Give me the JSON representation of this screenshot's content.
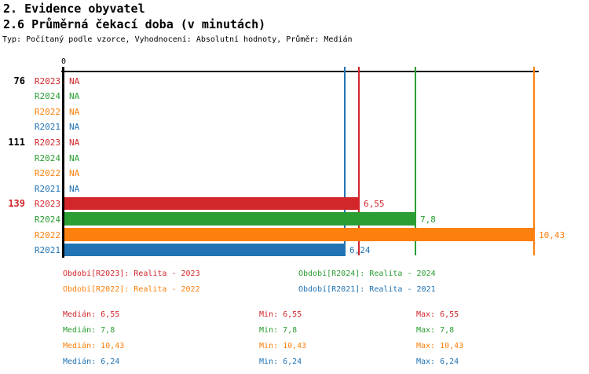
{
  "header": {
    "title1": "2. Evidence obyvatel",
    "title2": "2.6 Průměrná čekací doba (v minutách)",
    "meta": "Typ: Počítaný podle vzorce, Vyhodnocení: Absolutní hodnoty, Průměr: Medián"
  },
  "chart_data": {
    "type": "bar",
    "orientation": "horizontal",
    "title": "2.6 Průměrná čekací doba (v minutách)",
    "axis": {
      "origin_label": "0",
      "min": 0,
      "max_plotted_value": 10.43
    },
    "series": [
      {
        "name": "R2023",
        "color": "#d2262b",
        "legend_label": "Období[R2023]: Realita - 2023"
      },
      {
        "name": "R2024",
        "color": "#2a9d33",
        "legend_label": "Období[R2024]: Realita - 2024"
      },
      {
        "name": "R2022",
        "color": "#fc800d",
        "legend_label": "Období[R2022]: Realita - 2022"
      },
      {
        "name": "R2021",
        "color": "#2173b4",
        "legend_label": "Období[R2021]: Realita - 2021"
      }
    ],
    "groups": [
      {
        "label": "76",
        "label_color": "#000000",
        "values": [
          {
            "series": "R2023",
            "value": null,
            "display": "NA"
          },
          {
            "series": "R2024",
            "value": null,
            "display": "NA"
          },
          {
            "series": "R2022",
            "value": null,
            "display": "NA"
          },
          {
            "series": "R2021",
            "value": null,
            "display": "NA"
          }
        ]
      },
      {
        "label": "111",
        "label_color": "#000000",
        "values": [
          {
            "series": "R2023",
            "value": null,
            "display": "NA"
          },
          {
            "series": "R2024",
            "value": null,
            "display": "NA"
          },
          {
            "series": "R2022",
            "value": null,
            "display": "NA"
          },
          {
            "series": "R2021",
            "value": null,
            "display": "NA"
          }
        ]
      },
      {
        "label": "139",
        "label_color": "#d2262b",
        "values": [
          {
            "series": "R2023",
            "value": 6.55,
            "display": "6,55"
          },
          {
            "series": "R2024",
            "value": 7.8,
            "display": "7,8"
          },
          {
            "series": "R2022",
            "value": 10.43,
            "display": "10,43"
          },
          {
            "series": "R2021",
            "value": 6.24,
            "display": "6,24"
          }
        ]
      }
    ],
    "gridlines": [
      {
        "series": "R2021",
        "value": 6.24
      },
      {
        "series": "R2023",
        "value": 6.55
      },
      {
        "series": "R2024",
        "value": 7.8
      },
      {
        "series": "R2022",
        "value": 10.43
      }
    ]
  },
  "legend": {
    "items": [
      {
        "series": "R2023",
        "label": "Období[R2023]: Realita - 2023"
      },
      {
        "series": "R2024",
        "label": "Období[R2024]: Realita - 2024"
      },
      {
        "series": "R2022",
        "label": "Období[R2022]: Realita - 2022"
      },
      {
        "series": "R2021",
        "label": "Období[R2021]: Realita - 2021"
      }
    ]
  },
  "stats": {
    "median_label": "Medián",
    "min_label": "Min",
    "max_label": "Max",
    "rows": [
      {
        "series": "R2023",
        "median": "6,55",
        "min": "6,55",
        "max": "6,55"
      },
      {
        "series": "R2024",
        "median": "7,8",
        "min": "7,8",
        "max": "7,8"
      },
      {
        "series": "R2022",
        "median": "10,43",
        "min": "10,43",
        "max": "10,43"
      },
      {
        "series": "R2021",
        "median": "6,24",
        "min": "6,24",
        "max": "6,24"
      }
    ]
  }
}
